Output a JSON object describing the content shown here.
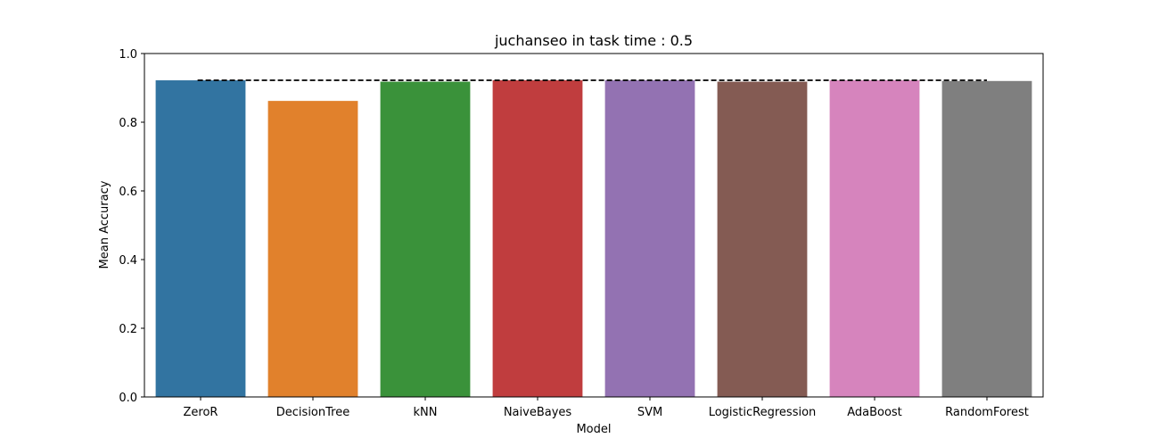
{
  "chart_data": {
    "type": "bar",
    "title": "juchanseo in task time : 0.5",
    "xlabel": "Model",
    "ylabel": "Mean Accuracy",
    "categories": [
      "ZeroR",
      "DecisionTree",
      "kNN",
      "NaiveBayes",
      "SVM",
      "LogisticRegression",
      "AdaBoost",
      "RandomForest"
    ],
    "values": [
      0.922,
      0.862,
      0.918,
      0.922,
      0.922,
      0.918,
      0.922,
      0.92
    ],
    "colors": [
      "#3274a1",
      "#e1812c",
      "#3a923a",
      "#c03d3e",
      "#9372b2",
      "#845b53",
      "#d684bd",
      "#7f7f7f"
    ],
    "ylim": [
      0,
      1.0
    ],
    "yticks": [
      "0.0",
      "0.2",
      "0.4",
      "0.6",
      "0.8",
      "1.0"
    ],
    "reference_line": {
      "value": 0.922,
      "style": "dashed",
      "color": "#000000"
    },
    "grid": false,
    "legend": "none"
  }
}
